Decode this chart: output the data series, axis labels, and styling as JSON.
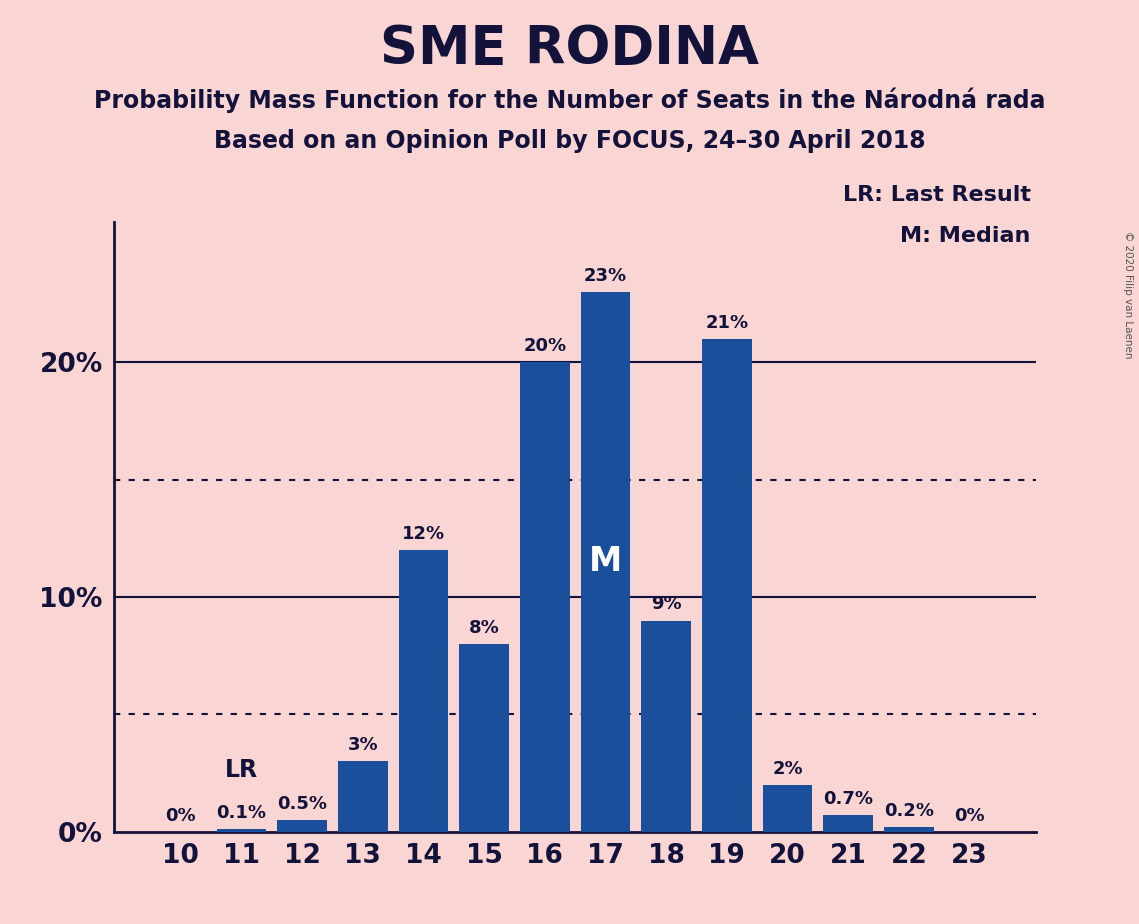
{
  "title": "SME RODINA",
  "subtitle1": "Probability Mass Function for the Number of Seats in the Národná rada",
  "subtitle2": "Based on an Opinion Poll by FOCUS, 24–30 April 2018",
  "copyright": "© 2020 Filip van Laenen",
  "categories": [
    10,
    11,
    12,
    13,
    14,
    15,
    16,
    17,
    18,
    19,
    20,
    21,
    22,
    23
  ],
  "values": [
    0.0,
    0.1,
    0.5,
    3.0,
    12.0,
    8.0,
    20.0,
    23.0,
    9.0,
    21.0,
    2.0,
    0.7,
    0.2,
    0.0
  ],
  "labels": [
    "0%",
    "0.1%",
    "0.5%",
    "3%",
    "12%",
    "8%",
    "20%",
    "23%",
    "9%",
    "21%",
    "2%",
    "0.7%",
    "0.2%",
    "0%"
  ],
  "bar_color": "#1a4f9c",
  "background_color": "#f9d5d3",
  "text_color": "#12123a",
  "title_fontsize": 38,
  "subtitle_fontsize": 17,
  "legend_text1": "LR: Last Result",
  "legend_text2": "M: Median",
  "lr_seat": 11,
  "median_seat": 17,
  "ylim": [
    0,
    26
  ],
  "dotted_lines": [
    5,
    15
  ],
  "solid_lines": [
    10,
    20
  ]
}
